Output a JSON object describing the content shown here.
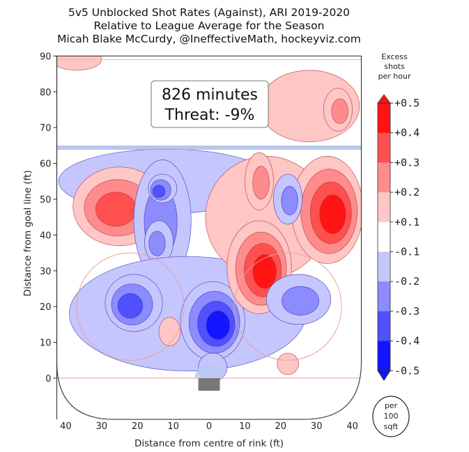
{
  "chart_data": {
    "type": "heatmap",
    "subtype": "filled-contour",
    "title_lines": [
      "5v5 Unblocked Shot Rates (Against), ARI 2019-2020",
      "Relative to League Average for the Season",
      "Micah Blake McCurdy, @IneffectiveMath, hockeyviz.com"
    ],
    "xlabel": "Distance from centre of rink (ft)",
    "ylabel": "Distance from goal line (ft)",
    "xlim": [
      -42.5,
      42.5
    ],
    "ylim": [
      -13,
      90
    ],
    "x_ticks": [
      -40,
      -30,
      -20,
      -10,
      0,
      10,
      20,
      30,
      40
    ],
    "x_tick_labels": [
      "40",
      "30",
      "20",
      "10",
      "0",
      "10",
      "20",
      "30",
      "40"
    ],
    "y_ticks": [
      0,
      10,
      20,
      30,
      40,
      50,
      60,
      70,
      80,
      90
    ],
    "annotation": {
      "line1": "826 minutes",
      "line2": "Threat: -9%"
    },
    "colorbar": {
      "title_lines": [
        "Excess",
        "shots",
        "per hour"
      ],
      "tick_labels": [
        "+0.5",
        "+0.4",
        "+0.3",
        "+0.2",
        "+0.1",
        "-0.1",
        "-0.2",
        "-0.3",
        "-0.4",
        "-0.5"
      ],
      "colors": [
        "#ff1414",
        "#ff5050",
        "#ff8c8c",
        "#ffc6c6",
        "#ffffff",
        "#c6c6ff",
        "#8c8cff",
        "#5050ff",
        "#1414ff"
      ],
      "unit_lines": [
        "per",
        "100",
        "sqft"
      ]
    },
    "regions": [
      {
        "x": -12,
        "y": 55,
        "rx": 30,
        "ry": 9,
        "peak": -0.15
      },
      {
        "x": -37,
        "y": 89,
        "rx": 7,
        "ry": 3,
        "peak": 0.15
      },
      {
        "x": -25,
        "y": 48,
        "rx": 13,
        "ry": 11,
        "peak": 0.32
      },
      {
        "x": -13,
        "y": 44,
        "rx": 8,
        "ry": 17,
        "peak": -0.22
      },
      {
        "x": -13,
        "y": 53,
        "rx": 4,
        "ry": 4,
        "peak": -0.35
      },
      {
        "x": -14,
        "y": 38,
        "rx": 4,
        "ry": 6,
        "peak": -0.25
      },
      {
        "x": -6,
        "y": 18,
        "rx": 33,
        "ry": 16,
        "peak": -0.15
      },
      {
        "x": -21,
        "y": 21,
        "rx": 8,
        "ry": 8,
        "peak": -0.32
      },
      {
        "x": 1,
        "y": 16,
        "rx": 9,
        "ry": 11,
        "peak": -0.48
      },
      {
        "x": -11,
        "y": 13,
        "rx": 3,
        "ry": 4,
        "peak": 0.15
      },
      {
        "x": 1,
        "y": 3,
        "rx": 4,
        "ry": 4,
        "peak": -0.12
      },
      {
        "x": 16,
        "y": 45,
        "rx": 17,
        "ry": 17,
        "peak": 0.15
      },
      {
        "x": 14,
        "y": 31,
        "rx": 9,
        "ry": 13,
        "peak": 0.42
      },
      {
        "x": 14,
        "y": 55,
        "rx": 4,
        "ry": 8,
        "peak": 0.2
      },
      {
        "x": 33,
        "y": 47,
        "rx": 10,
        "ry": 15,
        "peak": 0.52
      },
      {
        "x": 28,
        "y": 76,
        "rx": 14,
        "ry": 10,
        "peak": 0.15
      },
      {
        "x": 36,
        "y": 75,
        "rx": 4,
        "ry": 6,
        "peak": 0.25
      },
      {
        "x": 22,
        "y": 50,
        "rx": 4,
        "ry": 7,
        "peak": -0.22
      },
      {
        "x": 25,
        "y": 22,
        "rx": 9,
        "ry": 7,
        "peak": -0.25
      },
      {
        "x": 22,
        "y": 4,
        "rx": 3,
        "ry": 3,
        "peak": 0.18
      }
    ]
  }
}
